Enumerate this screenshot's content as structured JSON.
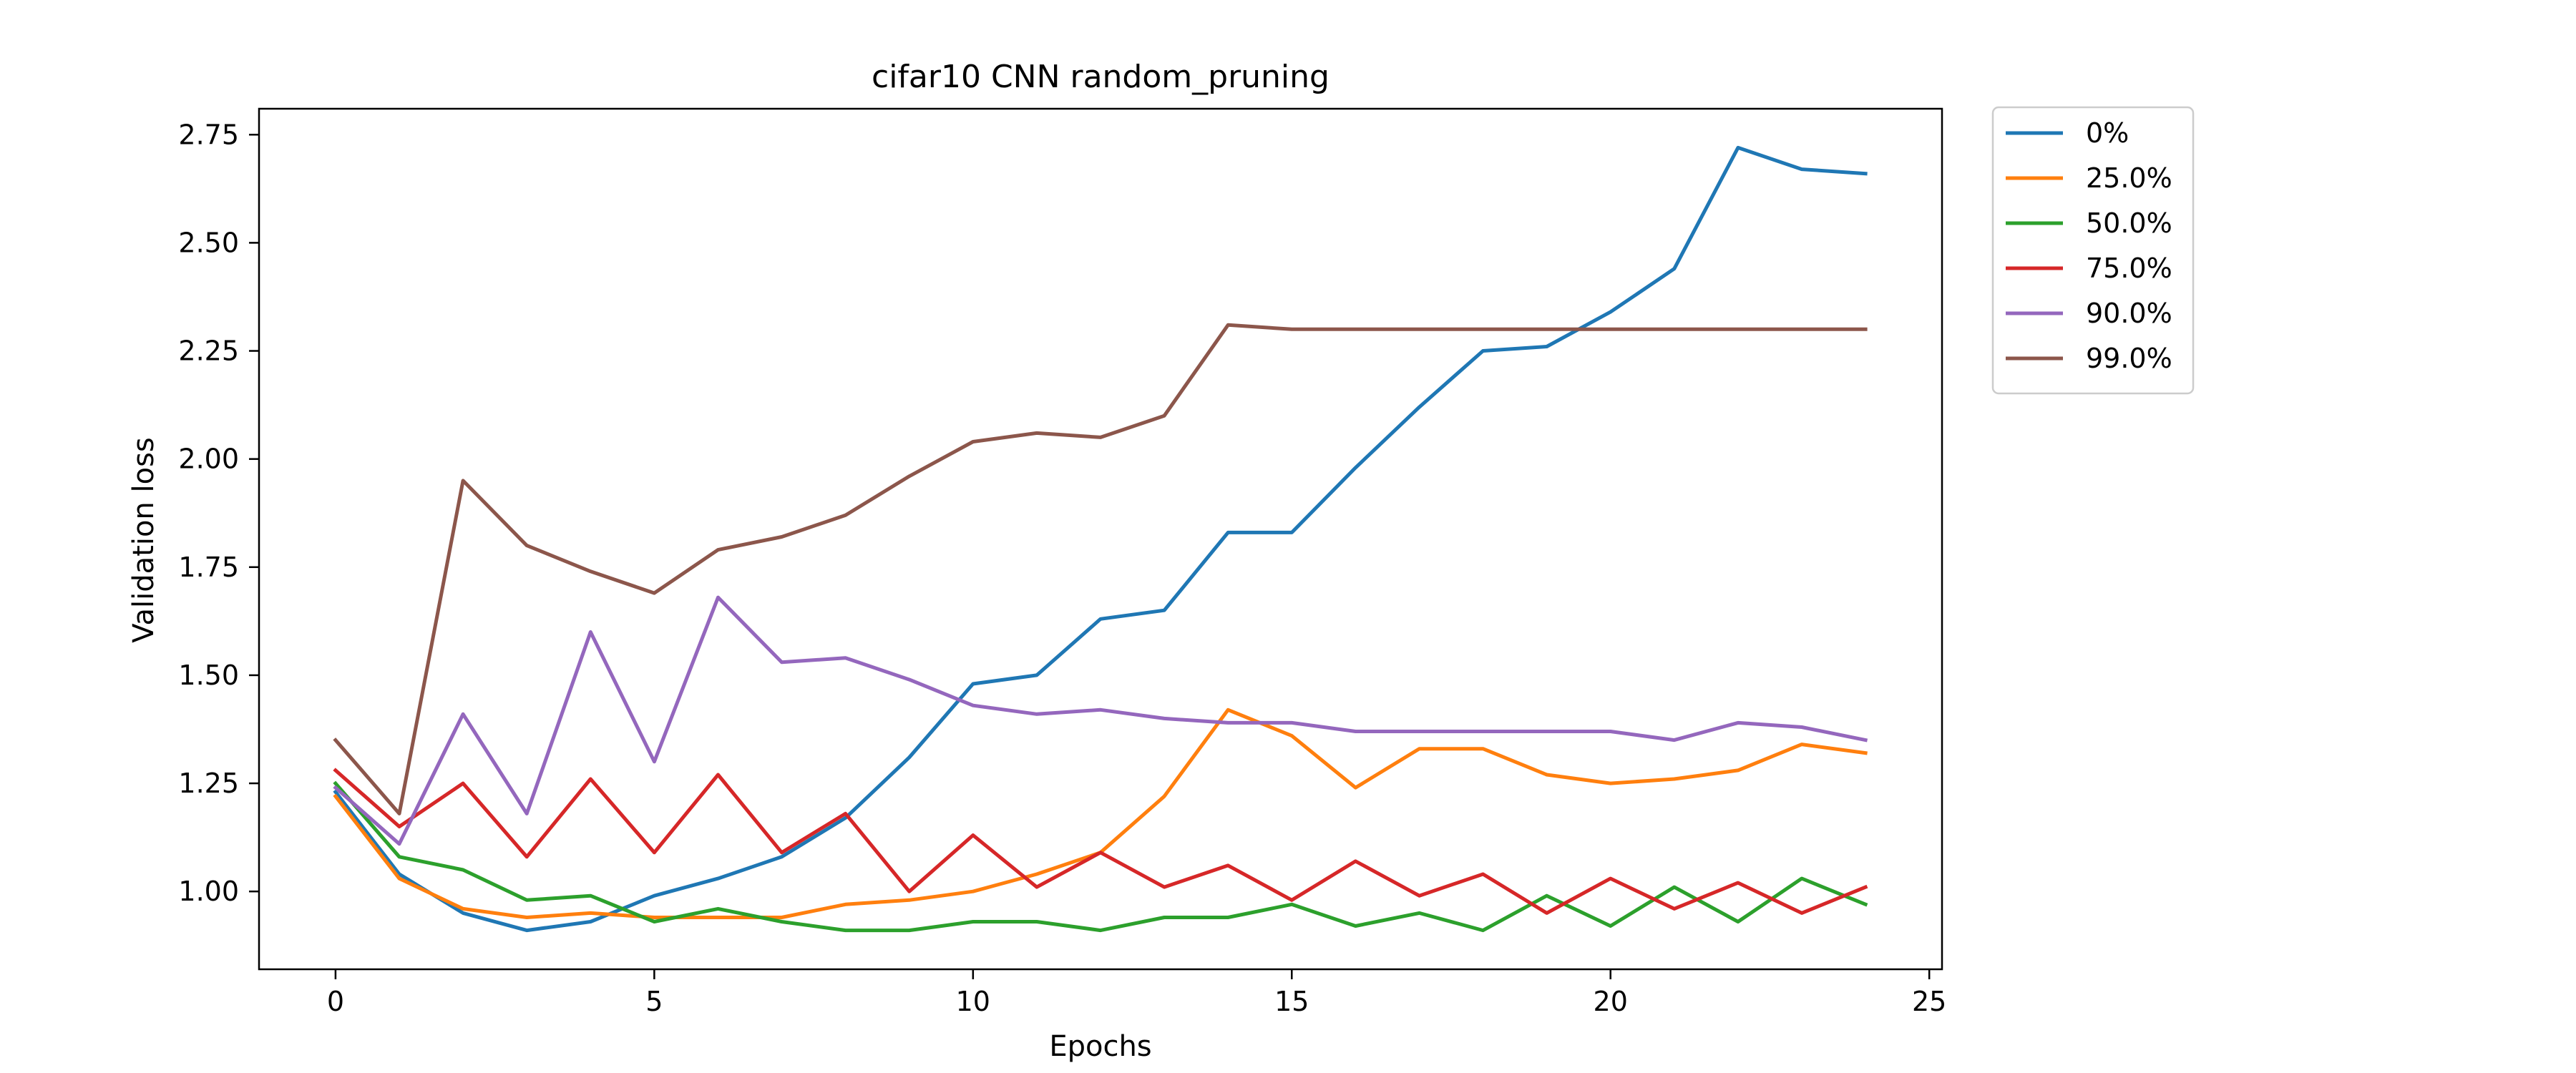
{
  "chart_data": {
    "type": "line",
    "title": "cifar10 CNN random_pruning",
    "xlabel": "Epochs",
    "ylabel": "Validation loss",
    "xlim": [
      -1.2,
      25.2
    ],
    "ylim": [
      0.82,
      2.81
    ],
    "xticks": [
      0,
      5,
      10,
      15,
      20,
      25
    ],
    "xtick_labels": [
      "0",
      "5",
      "10",
      "15",
      "20",
      "25"
    ],
    "yticks": [
      1.0,
      1.25,
      1.5,
      1.75,
      2.0,
      2.25,
      2.5,
      2.75
    ],
    "ytick_labels": [
      "1.00",
      "1.25",
      "1.50",
      "1.75",
      "2.00",
      "2.25",
      "2.50",
      "2.75"
    ],
    "grid": false,
    "legend_position": "outside-top-right",
    "x": [
      0,
      1,
      2,
      3,
      4,
      5,
      6,
      7,
      8,
      9,
      10,
      11,
      12,
      13,
      14,
      15,
      16,
      17,
      18,
      19,
      20,
      21,
      22,
      23,
      24
    ],
    "series": [
      {
        "name": "0%",
        "color": "#1f77b4",
        "values": [
          1.23,
          1.04,
          0.95,
          0.91,
          0.93,
          0.99,
          1.03,
          1.08,
          1.17,
          1.31,
          1.48,
          1.5,
          1.63,
          1.65,
          1.83,
          1.83,
          1.98,
          2.12,
          2.25,
          2.26,
          2.34,
          2.44,
          2.72,
          2.67,
          2.66
        ]
      },
      {
        "name": "25.0%",
        "color": "#ff7f0e",
        "values": [
          1.22,
          1.03,
          0.96,
          0.94,
          0.95,
          0.94,
          0.94,
          0.94,
          0.97,
          0.98,
          1.0,
          1.04,
          1.09,
          1.22,
          1.42,
          1.36,
          1.24,
          1.33,
          1.33,
          1.27,
          1.25,
          1.26,
          1.28,
          1.34,
          1.32
        ]
      },
      {
        "name": "50.0%",
        "color": "#2ca02c",
        "values": [
          1.25,
          1.08,
          1.05,
          0.98,
          0.99,
          0.93,
          0.96,
          0.93,
          0.91,
          0.91,
          0.93,
          0.93,
          0.91,
          0.94,
          0.94,
          0.97,
          0.92,
          0.95,
          0.91,
          0.99,
          0.92,
          1.01,
          0.93,
          1.03,
          0.97
        ]
      },
      {
        "name": "75.0%",
        "color": "#d62728",
        "values": [
          1.28,
          1.15,
          1.25,
          1.08,
          1.26,
          1.09,
          1.27,
          1.09,
          1.18,
          1.0,
          1.13,
          1.01,
          1.09,
          1.01,
          1.06,
          0.98,
          1.07,
          0.99,
          1.04,
          0.95,
          1.03,
          0.96,
          1.02,
          0.95,
          1.01
        ]
      },
      {
        "name": "90.0%",
        "color": "#9467bd",
        "values": [
          1.24,
          1.11,
          1.41,
          1.18,
          1.6,
          1.3,
          1.68,
          1.53,
          1.54,
          1.49,
          1.43,
          1.41,
          1.42,
          1.4,
          1.39,
          1.39,
          1.37,
          1.37,
          1.37,
          1.37,
          1.37,
          1.35,
          1.39,
          1.38,
          1.35
        ]
      },
      {
        "name": "99.0%",
        "color": "#8c564b",
        "values": [
          1.35,
          1.18,
          1.95,
          1.8,
          1.74,
          1.69,
          1.79,
          1.82,
          1.87,
          1.96,
          2.04,
          2.06,
          2.05,
          2.1,
          2.31,
          2.3,
          2.3,
          2.3,
          2.3,
          2.3,
          2.3,
          2.3,
          2.3,
          2.3,
          2.3
        ]
      }
    ]
  }
}
